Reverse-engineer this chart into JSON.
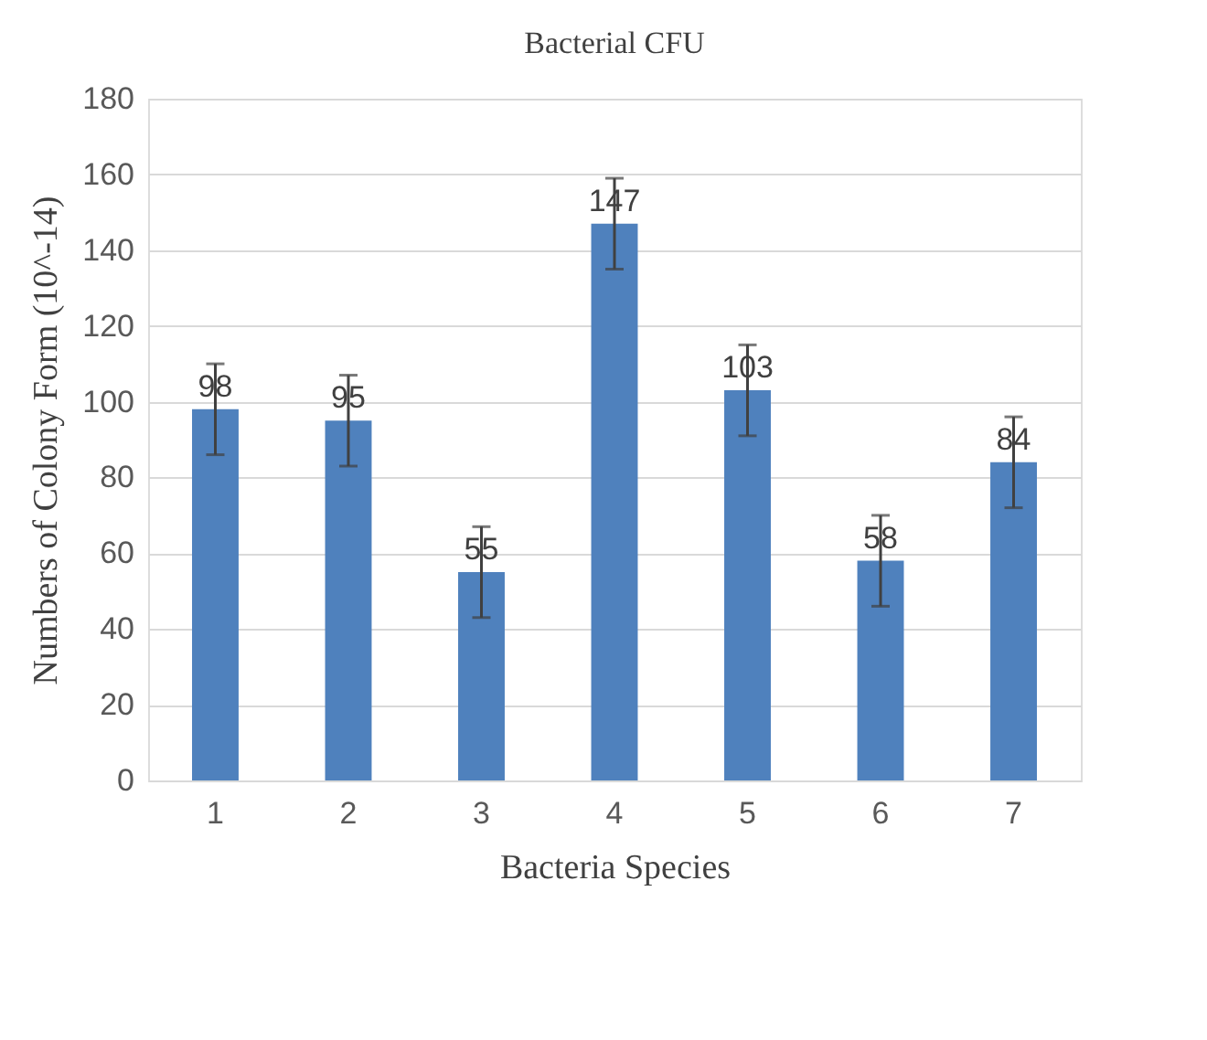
{
  "chart_data": {
    "type": "bar",
    "title": "Bacterial CFU",
    "xlabel": "Bacteria Species",
    "ylabel": "Numbers of Colony Form (10^-14)",
    "categories": [
      "1",
      "2",
      "3",
      "4",
      "5",
      "6",
      "7"
    ],
    "values": [
      98,
      95,
      55,
      147,
      103,
      58,
      84
    ],
    "errors": [
      12,
      12,
      12,
      12,
      12,
      12,
      12
    ],
    "color": "#4f81bd",
    "ylim": [
      0,
      180
    ],
    "yticks": [
      0,
      20,
      40,
      60,
      80,
      100,
      120,
      140,
      160,
      180
    ],
    "grid": "y",
    "data_labels": true
  }
}
